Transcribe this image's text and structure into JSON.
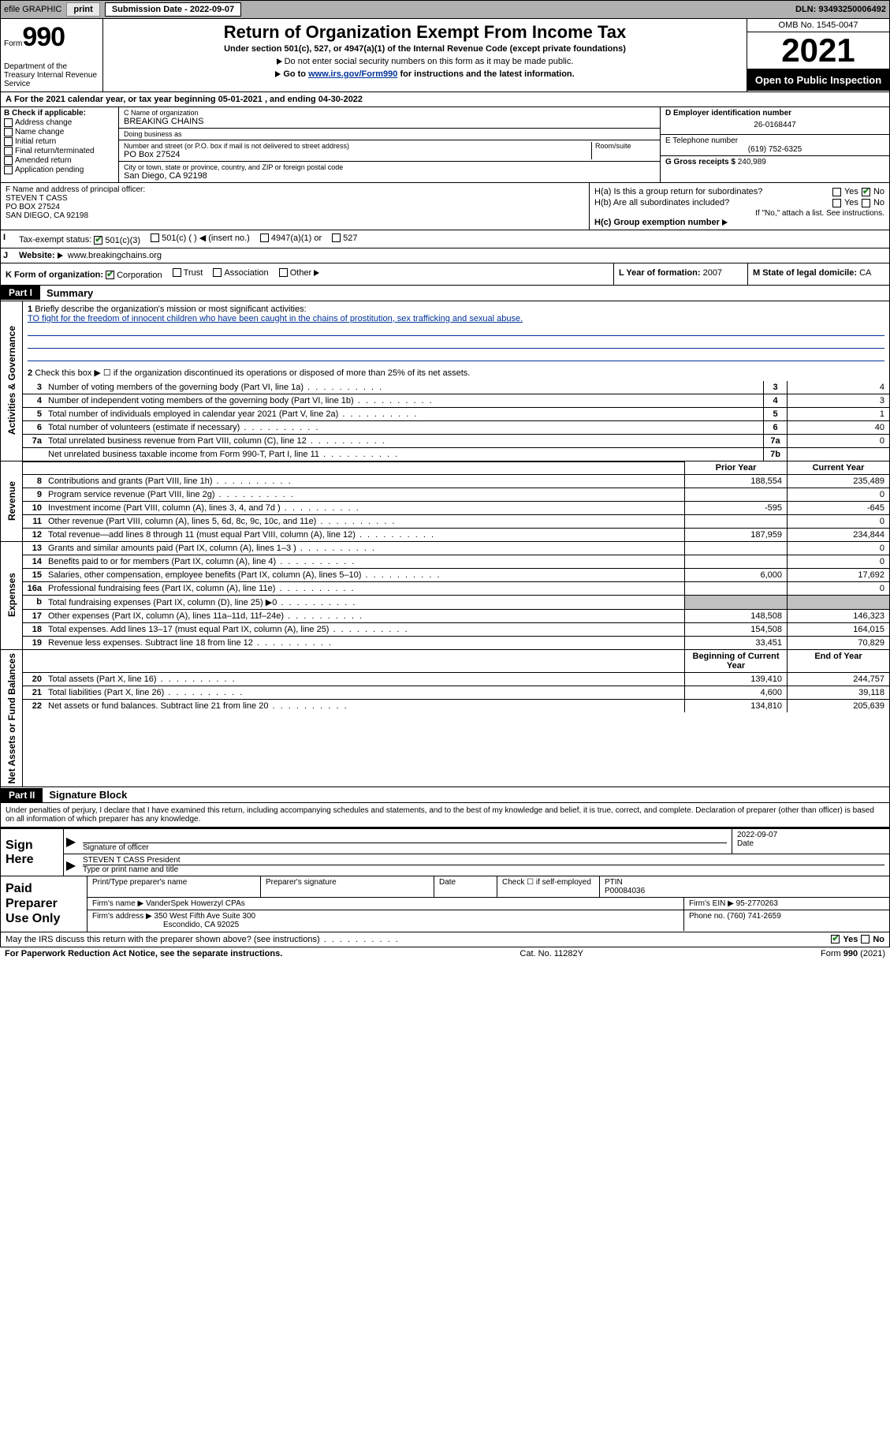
{
  "topbar": {
    "efile_label": "efile GRAPHIC",
    "print_btn": "print",
    "sub_date_label": "Submission Date - 2022-09-07",
    "dln": "DLN: 93493250006492"
  },
  "header": {
    "form_word": "Form",
    "form_num": "990",
    "dept": "Department of the Treasury Internal Revenue Service",
    "title": "Return of Organization Exempt From Income Tax",
    "subtitle": "Under section 501(c), 527, or 4947(a)(1) of the Internal Revenue Code (except private foundations)",
    "note1": "Do not enter social security numbers on this form as it may be made public.",
    "note2_pre": "Go to ",
    "note2_link": "www.irs.gov/Form990",
    "note2_post": " for instructions and the latest information.",
    "omb": "OMB No. 1545-0047",
    "year": "2021",
    "open_public": "Open to Public Inspection"
  },
  "line_a": "For the 2021 calendar year, or tax year beginning 05-01-2021   , and ending 04-30-2022",
  "box_b": {
    "hdr": "B Check if applicable:",
    "items": [
      "Address change",
      "Name change",
      "Initial return",
      "Final return/terminated",
      "Amended return",
      "Application pending"
    ]
  },
  "box_c": {
    "name_lbl": "C Name of organization",
    "name": "BREAKING CHAINS",
    "dba_lbl": "Doing business as",
    "dba": "",
    "addr_lbl": "Number and street (or P.O. box if mail is not delivered to street address)",
    "room_lbl": "Room/suite",
    "addr": "PO Box 27524",
    "city_lbl": "City or town, state or province, country, and ZIP or foreign postal code",
    "city": "San Diego, CA  92198"
  },
  "box_d": {
    "ein_lbl": "D Employer identification number",
    "ein": "26-0168447",
    "phone_lbl": "E Telephone number",
    "phone": "(619) 752-6325",
    "gross_lbl": "G Gross receipts $",
    "gross": "240,989"
  },
  "box_f": {
    "lbl": "F Name and address of principal officer:",
    "name": "STEVEN T CASS",
    "addr1": "PO BOX 27524",
    "addr2": "SAN DIEGO, CA  92198"
  },
  "box_h": {
    "a_lbl": "H(a)  Is this a group return for subordinates?",
    "b_lbl": "H(b)  Are all subordinates included?",
    "b_note": "If \"No,\" attach a list. See instructions.",
    "c_lbl": "H(c)  Group exemption number",
    "yes": "Yes",
    "no": "No"
  },
  "row_i": {
    "lbl": "Tax-exempt status:",
    "opts": [
      "501(c)(3)",
      "501(c) (  ) ◀ (insert no.)",
      "4947(a)(1) or",
      "527"
    ]
  },
  "row_j": {
    "lbl": "Website:",
    "val": "www.breakingchains.org"
  },
  "row_k": {
    "lbl": "K Form of organization:",
    "opts": [
      "Corporation",
      "Trust",
      "Association",
      "Other"
    ]
  },
  "row_l": {
    "lbl": "L Year of formation:",
    "val": "2007"
  },
  "row_m": {
    "lbl": "M State of legal domicile:",
    "val": "CA"
  },
  "part1": {
    "bar": "Part I",
    "title": "Summary",
    "line1_lbl": "Briefly describe the organization's mission or most significant activities:",
    "line1_val": "TO fight for the freedom of innocent children who have been caught in the chains of prostitution, sex trafficking and sexual abuse.",
    "line2": "Check this box ▶ ☐  if the organization discontinued its operations or disposed of more than 25% of its net assets.",
    "sections": {
      "gov": "Activities & Governance",
      "rev": "Revenue",
      "exp": "Expenses",
      "net": "Net Assets or Fund Balances"
    },
    "col_prior": "Prior Year",
    "col_curr": "Current Year",
    "col_beg": "Beginning of Current Year",
    "col_end": "End of Year",
    "rows_gov": [
      {
        "n": "3",
        "d": "Number of voting members of the governing body (Part VI, line 1a)",
        "box": "3",
        "v": "4"
      },
      {
        "n": "4",
        "d": "Number of independent voting members of the governing body (Part VI, line 1b)",
        "box": "4",
        "v": "3"
      },
      {
        "n": "5",
        "d": "Total number of individuals employed in calendar year 2021 (Part V, line 2a)",
        "box": "5",
        "v": "1"
      },
      {
        "n": "6",
        "d": "Total number of volunteers (estimate if necessary)",
        "box": "6",
        "v": "40"
      },
      {
        "n": "7a",
        "d": "Total unrelated business revenue from Part VIII, column (C), line 12",
        "box": "7a",
        "v": "0"
      },
      {
        "n": "",
        "d": "Net unrelated business taxable income from Form 990-T, Part I, line 11",
        "box": "7b",
        "v": ""
      }
    ],
    "rows_rev": [
      {
        "n": "8",
        "d": "Contributions and grants (Part VIII, line 1h)",
        "p": "188,554",
        "c": "235,489"
      },
      {
        "n": "9",
        "d": "Program service revenue (Part VIII, line 2g)",
        "p": "",
        "c": "0"
      },
      {
        "n": "10",
        "d": "Investment income (Part VIII, column (A), lines 3, 4, and 7d )",
        "p": "-595",
        "c": "-645"
      },
      {
        "n": "11",
        "d": "Other revenue (Part VIII, column (A), lines 5, 6d, 8c, 9c, 10c, and 11e)",
        "p": "",
        "c": "0"
      },
      {
        "n": "12",
        "d": "Total revenue—add lines 8 through 11 (must equal Part VIII, column (A), line 12)",
        "p": "187,959",
        "c": "234,844"
      }
    ],
    "rows_exp": [
      {
        "n": "13",
        "d": "Grants and similar amounts paid (Part IX, column (A), lines 1–3 )",
        "p": "",
        "c": "0"
      },
      {
        "n": "14",
        "d": "Benefits paid to or for members (Part IX, column (A), line 4)",
        "p": "",
        "c": "0"
      },
      {
        "n": "15",
        "d": "Salaries, other compensation, employee benefits (Part IX, column (A), lines 5–10)",
        "p": "6,000",
        "c": "17,692"
      },
      {
        "n": "16a",
        "d": "Professional fundraising fees (Part IX, column (A), line 11e)",
        "p": "",
        "c": "0"
      },
      {
        "n": "b",
        "d": "Total fundraising expenses (Part IX, column (D), line 25) ▶0",
        "p": "shade",
        "c": "shade"
      },
      {
        "n": "17",
        "d": "Other expenses (Part IX, column (A), lines 11a–11d, 11f–24e)",
        "p": "148,508",
        "c": "146,323"
      },
      {
        "n": "18",
        "d": "Total expenses. Add lines 13–17 (must equal Part IX, column (A), line 25)",
        "p": "154,508",
        "c": "164,015"
      },
      {
        "n": "19",
        "d": "Revenue less expenses. Subtract line 18 from line 12",
        "p": "33,451",
        "c": "70,829"
      }
    ],
    "rows_net": [
      {
        "n": "20",
        "d": "Total assets (Part X, line 16)",
        "p": "139,410",
        "c": "244,757"
      },
      {
        "n": "21",
        "d": "Total liabilities (Part X, line 26)",
        "p": "4,600",
        "c": "39,118"
      },
      {
        "n": "22",
        "d": "Net assets or fund balances. Subtract line 21 from line 20",
        "p": "134,810",
        "c": "205,639"
      }
    ]
  },
  "part2": {
    "bar": "Part II",
    "title": "Signature Block",
    "decl": "Under penalties of perjury, I declare that I have examined this return, including accompanying schedules and statements, and to the best of my knowledge and belief, it is true, correct, and complete. Declaration of preparer (other than officer) is based on all information of which preparer has any knowledge.",
    "sign_here": "Sign Here",
    "sig_officer_lbl": "Signature of officer",
    "date_lbl": "Date",
    "sig_date": "2022-09-07",
    "officer_name": "STEVEN T CASS President",
    "officer_name_lbl": "Type or print name and title",
    "paid_prep": "Paid Preparer Use Only",
    "prep_name_lbl": "Print/Type preparer's name",
    "prep_sig_lbl": "Preparer's signature",
    "prep_date_lbl": "Date",
    "check_self": "Check ☐ if self-employed",
    "ptin_lbl": "PTIN",
    "ptin": "P00084036",
    "firm_name_lbl": "Firm's name    ▶",
    "firm_name": "VanderSpek Howerzyl CPAs",
    "firm_ein_lbl": "Firm's EIN ▶",
    "firm_ein": "95-2770263",
    "firm_addr_lbl": "Firm's address ▶",
    "firm_addr": "350 West Fifth Ave Suite 300",
    "firm_addr2": "Escondido, CA  92025",
    "firm_phone_lbl": "Phone no.",
    "firm_phone": "(760) 741-2659",
    "discuss": "May the IRS discuss this return with the preparer shown above? (see instructions)"
  },
  "footer": {
    "paperwork": "For Paperwork Reduction Act Notice, see the separate instructions.",
    "cat": "Cat. No. 11282Y",
    "form": "Form 990 (2021)"
  }
}
